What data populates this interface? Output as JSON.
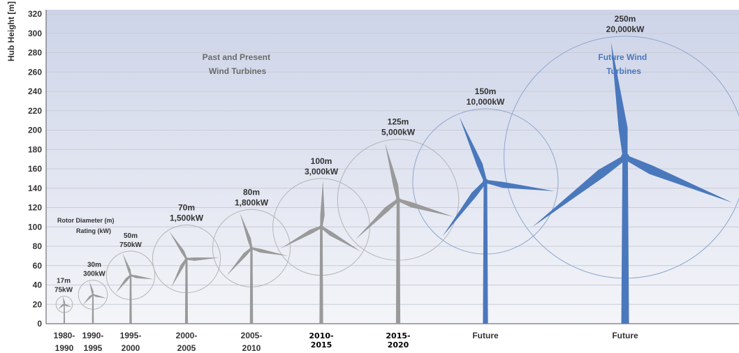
{
  "colors": {
    "past_turbine": "#9a9a9a",
    "future_turbine": "#4a78bd",
    "circle_past": "#b5b5b5",
    "circle_future": "#8ea6cf",
    "bg_top": "#cdd4e8",
    "bg_bottom": "#f4f5f9",
    "grid": "#c9ccd6"
  },
  "chart_data": {
    "type": "scatter",
    "ylabel": "Hub Height [m]",
    "ylim": [
      0,
      320
    ],
    "yticks": [
      0,
      20,
      40,
      60,
      80,
      100,
      120,
      140,
      160,
      180,
      200,
      220,
      240,
      260,
      280,
      300,
      320
    ],
    "grid": true,
    "annotations": {
      "past": [
        "Past and Present",
        "Wind Turbines"
      ],
      "future": [
        "Future Wind",
        "Turbines"
      ],
      "legend": [
        "Rotor Diameter (m)",
        "Rating (kW)"
      ]
    },
    "turbines": [
      {
        "period": [
          "1980-",
          "1990"
        ],
        "hub_height_m": 20,
        "rotor_diameter": "17m",
        "rating": "75kW",
        "diameter_m": 17,
        "category": "past"
      },
      {
        "period": [
          "1990-",
          "1995"
        ],
        "hub_height_m": 30,
        "rotor_diameter": "30m",
        "rating": "300kW",
        "diameter_m": 30,
        "category": "past"
      },
      {
        "period": [
          "1995-",
          "2000"
        ],
        "hub_height_m": 50,
        "rotor_diameter": "50m",
        "rating": "750kW",
        "diameter_m": 50,
        "category": "past"
      },
      {
        "period": [
          "2000-",
          "2005"
        ],
        "hub_height_m": 67,
        "rotor_diameter": "70m",
        "rating": "1,500kW",
        "diameter_m": 70,
        "category": "past"
      },
      {
        "period": [
          "2005-",
          "2010"
        ],
        "hub_height_m": 78,
        "rotor_diameter": "80m",
        "rating": "1,800kW",
        "diameter_m": 80,
        "category": "past"
      },
      {
        "period": [
          "2010-",
          "2015"
        ],
        "hub_height_m": 100,
        "rotor_diameter": "100m",
        "rating": "3,000kW",
        "diameter_m": 100,
        "category": "past"
      },
      {
        "period": [
          "2015-",
          "2020"
        ],
        "hub_height_m": 128,
        "rotor_diameter": "125m",
        "rating": "5,000kW",
        "diameter_m": 125,
        "category": "past"
      },
      {
        "period": [
          "Future"
        ],
        "hub_height_m": 147,
        "rotor_diameter": "150m",
        "rating": "10,000kW",
        "diameter_m": 150,
        "category": "future"
      },
      {
        "period": [
          "Future"
        ],
        "hub_height_m": 172,
        "rotor_diameter": "250m",
        "rating": "20,000kW",
        "diameter_m": 250,
        "category": "future"
      }
    ]
  }
}
